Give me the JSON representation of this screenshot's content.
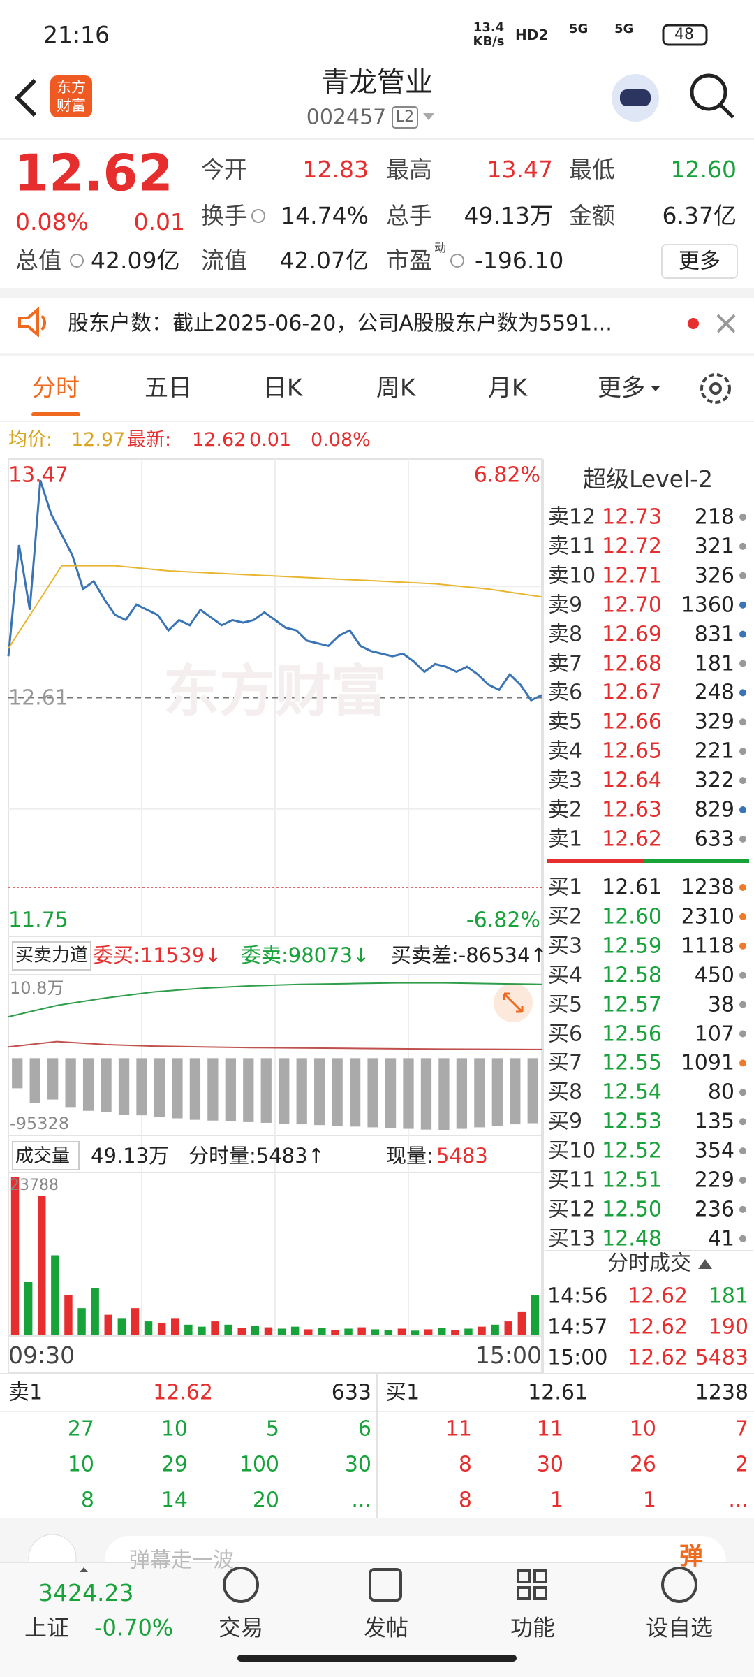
{
  "status_bar": {
    "time": "21:16",
    "net_speed": "13.4",
    "net_unit": "KB/s",
    "hd": "HD2",
    "signal_1": "5G",
    "signal_2": "5G",
    "battery": "48"
  },
  "header": {
    "logo": "东方财富",
    "title": "青龙管业",
    "code": "002457",
    "level": "L2"
  },
  "quote": {
    "price": "12.62",
    "change_pct": "0.08%",
    "change": "0.01",
    "stats": [
      {
        "label": "今开",
        "value": "12.83",
        "color": "red"
      },
      {
        "label": "最高",
        "value": "13.47",
        "color": "red"
      },
      {
        "label": "最低",
        "value": "12.60",
        "color": "green"
      },
      {
        "label": "换手",
        "value": "14.74%"
      },
      {
        "label": "总手",
        "value": "49.13万"
      },
      {
        "label": "金额",
        "value": "6.37亿"
      }
    ],
    "row3": [
      {
        "label": "总值",
        "value": "42.09亿"
      },
      {
        "label": "流值",
        "value": "42.07亿"
      },
      {
        "label": "市盈",
        "sup": "动",
        "value": "-196.10"
      }
    ],
    "more": "更多"
  },
  "notice": {
    "text": "股东户数：截止2025-06-20，公司A股股东户数为5591..."
  },
  "tabs": [
    "分时",
    "五日",
    "日K",
    "周K",
    "月K",
    "更多"
  ],
  "price_bar": {
    "avg_label": "均价:",
    "avg": "12.97",
    "latest_label": "最新:",
    "latest": "12.62",
    "change": "0.01",
    "change_pct": "0.08%"
  },
  "intraday": {
    "type": "line",
    "ylim": [
      11.75,
      13.47
    ],
    "yticks": [
      {
        "value": 13.47,
        "label": "13.47"
      },
      {
        "value": 12.61,
        "label": "12.61"
      },
      {
        "value": 11.75,
        "label": "11.75"
      }
    ],
    "pct_high": "6.82%",
    "pct_low": "-6.82%",
    "watermark": "东方财富",
    "series": [
      {
        "color": "#3a74b5",
        "values": [
          12.77,
          13.2,
          12.95,
          13.45,
          13.32,
          13.24,
          13.16,
          13.03,
          13.06,
          12.99,
          12.93,
          12.91,
          12.97,
          12.95,
          12.93,
          12.87,
          12.91,
          12.89,
          12.95,
          12.92,
          12.89,
          12.91,
          12.9,
          12.91,
          12.94,
          12.91,
          12.88,
          12.87,
          12.83,
          12.82,
          12.81,
          12.85,
          12.87,
          12.81,
          12.79,
          12.78,
          12.77,
          12.78,
          12.75,
          12.71,
          12.74,
          12.73,
          12.71,
          12.73,
          12.7,
          12.66,
          12.64,
          12.7,
          12.66,
          12.6,
          12.62
        ]
      },
      {
        "color": "#e8b530",
        "values": [
          12.8,
          13.12,
          13.12,
          13.1,
          13.09,
          13.08,
          13.07,
          13.06,
          13.05,
          13.03,
          13.0
        ]
      }
    ]
  },
  "order_book": {
    "title": "超级Level-2",
    "asks": [
      {
        "label": "卖12",
        "price": "12.73",
        "volume": "218",
        "dot": "#999"
      },
      {
        "label": "卖11",
        "price": "12.72",
        "volume": "321",
        "dot": "#999"
      },
      {
        "label": "卖10",
        "price": "12.71",
        "volume": "326",
        "dot": "#999"
      },
      {
        "label": "卖9",
        "price": "12.70",
        "volume": "1360",
        "dot": "#3a74b5"
      },
      {
        "label": "卖8",
        "price": "12.69",
        "volume": "831",
        "dot": "#3a74b5"
      },
      {
        "label": "卖7",
        "price": "12.68",
        "volume": "181",
        "dot": "#999"
      },
      {
        "label": "卖6",
        "price": "12.67",
        "volume": "248",
        "dot": "#3a74b5"
      },
      {
        "label": "卖5",
        "price": "12.66",
        "volume": "329",
        "dot": "#999"
      },
      {
        "label": "卖4",
        "price": "12.65",
        "volume": "221",
        "dot": "#999"
      },
      {
        "label": "卖3",
        "price": "12.64",
        "volume": "322",
        "dot": "#999"
      },
      {
        "label": "卖2",
        "price": "12.63",
        "volume": "829",
        "dot": "#3a74b5"
      },
      {
        "label": "卖1",
        "price": "12.62",
        "volume": "633",
        "dot": "#999"
      }
    ],
    "bids": [
      {
        "label": "买1",
        "price": "12.61",
        "volume": "1238",
        "dot": "#ef7a2a"
      },
      {
        "label": "买2",
        "price": "12.60",
        "volume": "2310",
        "dot": "#ef7a2a"
      },
      {
        "label": "买3",
        "price": "12.59",
        "volume": "1118",
        "dot": "#ef7a2a"
      },
      {
        "label": "买4",
        "price": "12.58",
        "volume": "450",
        "dot": "#999"
      },
      {
        "label": "买5",
        "price": "12.57",
        "volume": "38",
        "dot": "#999"
      },
      {
        "label": "买6",
        "price": "12.56",
        "volume": "107",
        "dot": "#999"
      },
      {
        "label": "买7",
        "price": "12.55",
        "volume": "1091",
        "dot": "#ef7a2a"
      },
      {
        "label": "买8",
        "price": "12.54",
        "volume": "80",
        "dot": "#999"
      },
      {
        "label": "买9",
        "price": "12.53",
        "volume": "135",
        "dot": "#999"
      },
      {
        "label": "买10",
        "price": "12.52",
        "volume": "354",
        "dot": "#999"
      },
      {
        "label": "买11",
        "price": "12.51",
        "volume": "229",
        "dot": "#999"
      },
      {
        "label": "买12",
        "price": "12.50",
        "volume": "236",
        "dot": "#999"
      },
      {
        "label": "买13",
        "price": "12.48",
        "volume": "41",
        "dot": "#999"
      }
    ]
  },
  "trades": {
    "title": "分时成交",
    "rows": [
      {
        "time": "14:56",
        "price": "12.62",
        "volume": "181",
        "side": "sell"
      },
      {
        "time": "14:57",
        "price": "12.62",
        "volume": "190",
        "side": "buy"
      },
      {
        "time": "15:00",
        "price": "12.62",
        "volume": "5483",
        "side": "buy"
      }
    ]
  },
  "indicator": {
    "name": "买卖力道",
    "buy": "委买:11539↓",
    "sell": "委卖:98073↓",
    "diff": "买卖差:-86534↑",
    "top_label": "10.8万",
    "bottom_label": "-95328",
    "ylim": [
      -95328,
      108000
    ],
    "series": [
      {
        "color": "#2e9e4a",
        "values": [
          55000,
          70000,
          80000,
          88000,
          93000,
          96000,
          98000,
          99000,
          100000,
          100000,
          99000,
          98073
        ]
      },
      {
        "color": "#c0504d",
        "values": [
          15000,
          22000,
          18000,
          16000,
          15000,
          14000,
          13500,
          13000,
          12500,
          12000,
          11800,
          11539
        ]
      }
    ],
    "bars": [
      -40000,
      -60000,
      -55000,
      -65000,
      -70000,
      -72000,
      -75000,
      -76000,
      -78000,
      -80000,
      -82000,
      -83000,
      -84000,
      -85000,
      -86000,
      -87000,
      -88000,
      -89000,
      -90000,
      -91000,
      -92000,
      -93000,
      -94000,
      -95000,
      -95328,
      -94000,
      -92000,
      -90000,
      -88000,
      -86534
    ]
  },
  "volume": {
    "name": "成交量",
    "total": "49.13万",
    "minute": "分时量:5483↑",
    "current_label": "现量:",
    "current": "5483",
    "max_label": "23788",
    "ylim": [
      0,
      23788
    ],
    "values": [
      23788,
      8000,
      21000,
      12000,
      6000,
      4000,
      7000,
      3000,
      2500,
      4000,
      2000,
      1800,
      2500,
      1500,
      1200,
      2000,
      1500,
      1000,
      1300,
      1100,
      900,
      1200,
      800,
      1000,
      700,
      900,
      1100,
      800,
      700,
      900,
      600,
      800,
      1000,
      700,
      900,
      1200,
      1500,
      2000,
      3500,
      6000
    ],
    "directions": [
      "up",
      "down",
      "up",
      "down",
      "up",
      "down",
      "down",
      "up",
      "down",
      "up",
      "down",
      "up",
      "up",
      "down",
      "down",
      "up",
      "down",
      "up",
      "down",
      "up",
      "down",
      "down",
      "up",
      "down",
      "up",
      "down",
      "up",
      "down",
      "down",
      "up",
      "down",
      "up",
      "down",
      "up",
      "down",
      "up",
      "down",
      "up",
      "up",
      "down"
    ],
    "x_labels": [
      "09:30",
      "15:00"
    ]
  },
  "level_table": {
    "ask_label": "卖1",
    "ask_price": "12.62",
    "ask_volume": "633",
    "bid_label": "买1",
    "bid_price": "12.61",
    "bid_volume": "1238",
    "ask_rows": [
      [
        "27",
        "10",
        "5",
        "6"
      ],
      [
        "10",
        "29",
        "100",
        "30"
      ],
      [
        "8",
        "14",
        "20",
        "..."
      ]
    ],
    "bid_rows": [
      [
        "11",
        "11",
        "10",
        "7"
      ],
      [
        "8",
        "30",
        "26",
        "2"
      ],
      [
        "8",
        "1",
        "1",
        "..."
      ]
    ]
  },
  "comment": {
    "placeholder": "弹幕走一波",
    "button": "弹"
  },
  "bottom_nav": {
    "index_value": "3424.23",
    "index_name": "上证",
    "index_change": "-0.70%",
    "items": [
      "交易",
      "发帖",
      "功能",
      "设自选"
    ]
  }
}
